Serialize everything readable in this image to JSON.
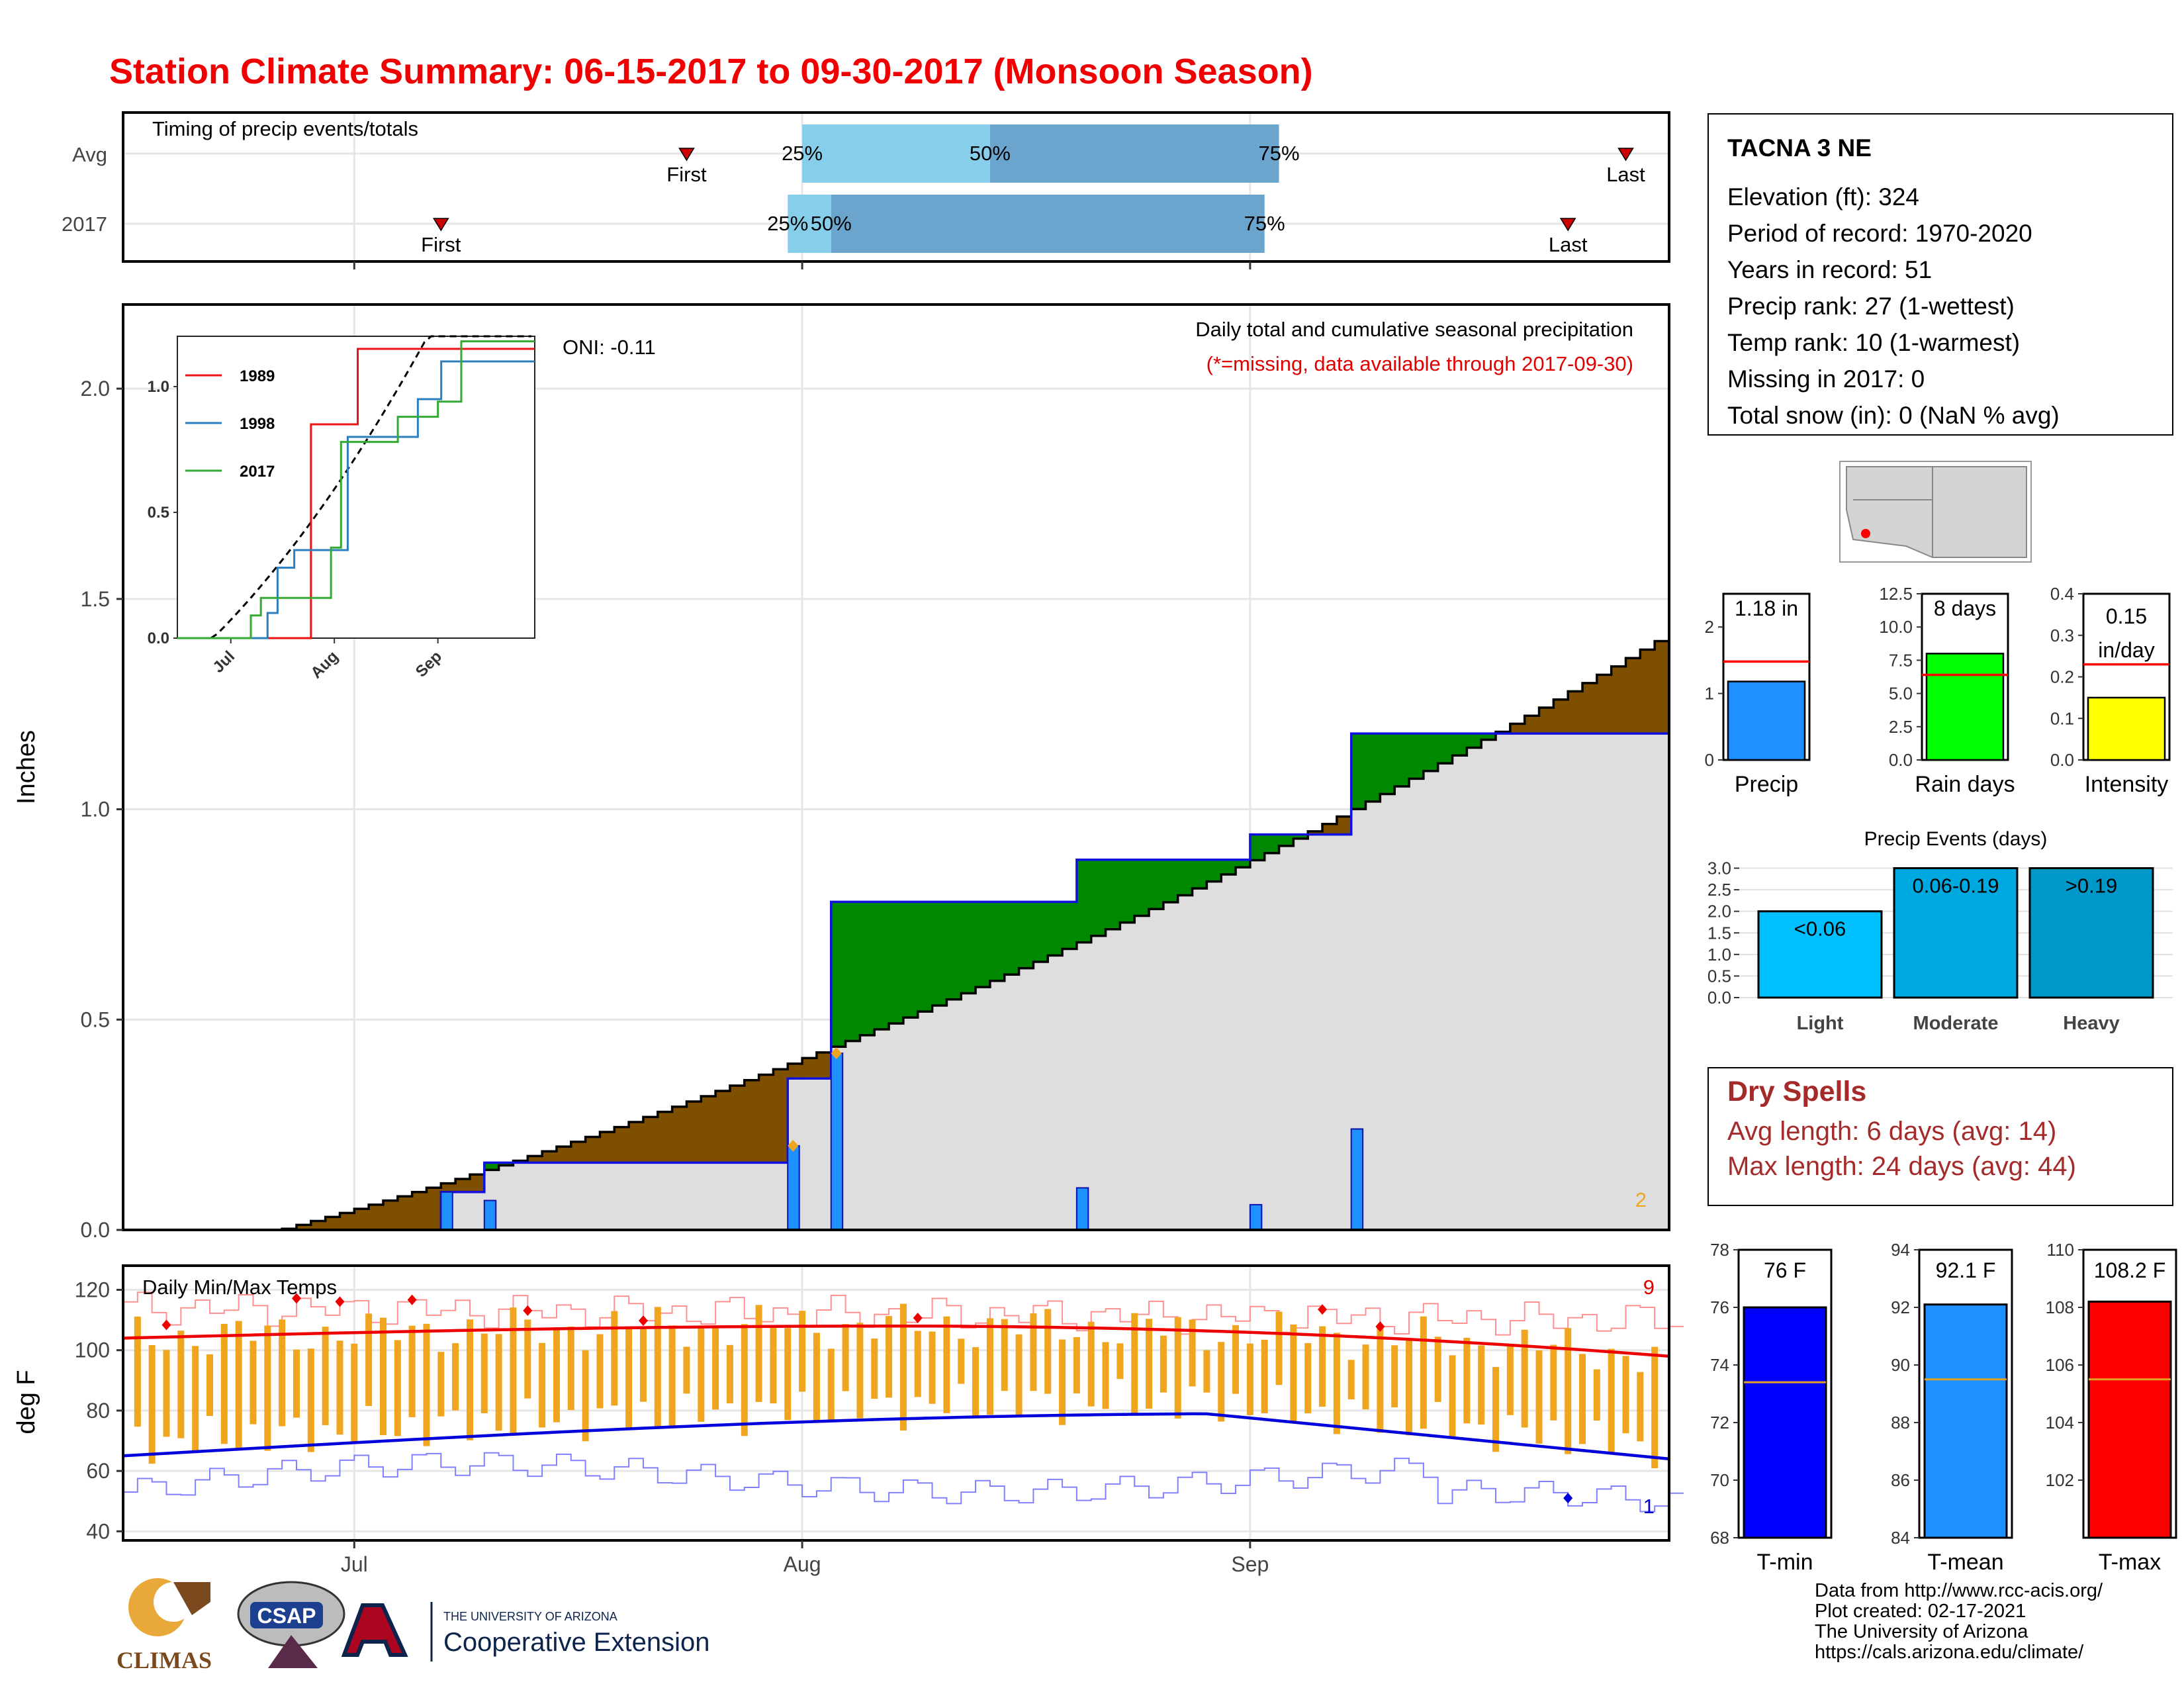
{
  "title": "Station Climate Summary: 06-15-2017 to 09-30-2017 (Monsoon Season)",
  "colors": {
    "title": "#f00000",
    "brown": "#7f4f00",
    "green": "#008800",
    "blue_line": "#1010e0",
    "bar_blue": "#1e90ff",
    "gray_fill": "#dedede",
    "q_light": "#87ceeb",
    "q_dark": "#6ba4cc",
    "orange": "#f0a51e",
    "dry_red": "#a52a2a"
  },
  "timing_panel": {
    "label": "Timing of precip events/totals",
    "rows": [
      {
        "name": "Avg",
        "first_date": "2017-07-24",
        "last_date": "2017-09-27",
        "q25": "2017-08-01",
        "q50": "2017-08-14",
        "q75": "2017-09-03",
        "first_label": "First",
        "last_label": "Last",
        "q25_label": "25%",
        "q50_label": "50%",
        "q75_label": "75%"
      },
      {
        "name": "2017",
        "first_date": "2017-07-07",
        "last_date": "2017-09-23",
        "q25": "2017-07-31",
        "q50": "2017-08-03",
        "q75": "2017-09-02",
        "first_label": "First",
        "last_label": "Last",
        "q25_label": "25%",
        "q50_label": "50%",
        "q75_label": "75%"
      }
    ]
  },
  "precip_panel": {
    "ylabel": "Inches",
    "yticks": [
      "0.0",
      "0.5",
      "1.0",
      "1.5",
      "2.0"
    ],
    "oni": "ONI: -0.11",
    "legend_title": "Daily total and cumulative seasonal precipitation",
    "missing_note": "(*=missing, data available through 2017-09-30)",
    "corner_count": "2"
  },
  "inset": {
    "yticks": [
      "0.0",
      "0.5",
      "1.0"
    ],
    "xticks": [
      "Jul",
      "Aug",
      "Sep"
    ],
    "series": [
      {
        "name": "1989",
        "color": "#ee1111"
      },
      {
        "name": "1998",
        "color": "#2b7fbf"
      },
      {
        "name": "2017",
        "color": "#33aa33"
      }
    ]
  },
  "temp_panel": {
    "ylabel": "deg F",
    "label": "Daily Min/Max Temps",
    "yticks": [
      "40",
      "60",
      "80",
      "100",
      "120"
    ],
    "count_top": "9",
    "count_bottom": "1"
  },
  "x_months": [
    "Jul",
    "Aug",
    "Sep"
  ],
  "station": {
    "name": "TACNA 3 NE",
    "lines": [
      "Elevation (ft): 324",
      "Period of record: 1970-2020",
      "Years in record: 51",
      "Precip rank: 27 (1-wettest)",
      "Temp rank: 10 (1-warmest)",
      "Missing in 2017: 0",
      "Total snow (in): 0 (NaN % avg)"
    ]
  },
  "summary_bars": [
    {
      "label": "Precip",
      "value_text": "1.18 in",
      "value": 1.18,
      "avg": 1.48,
      "ymax": 2.5,
      "ticks": [
        "0",
        "1",
        "2"
      ],
      "color": "#1e90ff"
    },
    {
      "label": "Rain days",
      "value_text": "8 days",
      "value": 8,
      "avg": 6.4,
      "ymax": 12.5,
      "ticks": [
        "0.0",
        "2.5",
        "5.0",
        "7.5",
        "10.0",
        "12.5"
      ],
      "color": "#00ff00"
    },
    {
      "label": "Intensity",
      "value_text": "0.15 in/day",
      "value": 0.15,
      "avg": 0.23,
      "ymax": 0.4,
      "ticks": [
        "0.0",
        "0.1",
        "0.2",
        "0.3",
        "0.4"
      ],
      "color": "#ffff00"
    }
  ],
  "events": {
    "title": "Precip Events (days)",
    "yticks": [
      "0.0",
      "0.5",
      "1.0",
      "1.5",
      "2.0",
      "2.5",
      "3.0"
    ],
    "bars": [
      {
        "category": "Light",
        "range": "<0.06",
        "value": 2,
        "color": "#00bfff"
      },
      {
        "category": "Moderate",
        "range": "0.06-0.19",
        "value": 3,
        "color": "#00a8e0"
      },
      {
        "category": "Heavy",
        "range": ">0.19",
        "value": 3,
        "color": "#0098c8"
      }
    ]
  },
  "dry_spells": {
    "title": "Dry Spells",
    "avg": "Avg length: 6 days (avg: 14)",
    "max": "Max length: 24 days (avg: 44)"
  },
  "temp_bars": [
    {
      "label": "T-min",
      "value_text": "76 F",
      "value": 76,
      "avg": 73.4,
      "ymin": 68,
      "ymax": 78,
      "ticks": [
        "68",
        "70",
        "72",
        "74",
        "76",
        "78"
      ],
      "color": "#0000ff"
    },
    {
      "label": "T-mean",
      "value_text": "92.1 F",
      "value": 92.1,
      "avg": 89.5,
      "ymin": 84,
      "ymax": 94,
      "ticks": [
        "84",
        "86",
        "88",
        "90",
        "92",
        "94"
      ],
      "color": "#1e90ff"
    },
    {
      "label": "T-max",
      "value_text": "108.2 F",
      "value": 108.2,
      "avg": 105.5,
      "ymin": 100,
      "ymax": 110,
      "ticks": [
        "102",
        "104",
        "106",
        "108",
        "110"
      ],
      "color": "#ff0000"
    }
  ],
  "logos": {
    "climas": "CLIMAS",
    "csap": "CSAP",
    "ua_small": "THE UNIVERSITY OF ARIZONA",
    "ua_big": "Cooperative Extension"
  },
  "credits": [
    "Data from http://www.rcc-acis.org/",
    "Plot created: 02-17-2021",
    "The University of Arizona",
    "https://cals.arizona.edu/climate/"
  ],
  "chart_data": {
    "type": "area",
    "title": "Daily total and cumulative seasonal precipitation",
    "ylabel": "Inches",
    "ylim": [
      0,
      2.2
    ],
    "xlim": [
      "2017-06-15",
      "2017-09-30"
    ],
    "daily_precip_2017": [
      {
        "date": "2017-07-07",
        "value": 0.09
      },
      {
        "date": "2017-07-10",
        "value": 0.07
      },
      {
        "date": "2017-07-31",
        "value": 0.2
      },
      {
        "date": "2017-08-03",
        "value": 0.42
      },
      {
        "date": "2017-08-20",
        "value": 0.1
      },
      {
        "date": "2017-09-01",
        "value": 0.06
      },
      {
        "date": "2017-09-08",
        "value": 0.24
      }
    ],
    "cumulative_2017_total": 1.18,
    "cumulative_avg_end": 1.42,
    "inset_series": {
      "1989": [
        [
          "2017-06-15",
          0
        ],
        [
          "2017-07-25",
          0
        ],
        [
          "2017-07-25",
          0.85
        ],
        [
          "2017-08-08",
          0.85
        ],
        [
          "2017-08-08",
          1.15
        ],
        [
          "2017-09-30",
          1.15
        ]
      ],
      "1998": [
        [
          "2017-06-15",
          0
        ],
        [
          "2017-07-12",
          0
        ],
        [
          "2017-07-12",
          0.1
        ],
        [
          "2017-07-15",
          0.1
        ],
        [
          "2017-07-15",
          0.28
        ],
        [
          "2017-07-20",
          0.28
        ],
        [
          "2017-07-20",
          0.35
        ],
        [
          "2017-08-05",
          0.35
        ],
        [
          "2017-08-05",
          0.8
        ],
        [
          "2017-08-26",
          0.8
        ],
        [
          "2017-08-26",
          0.95
        ],
        [
          "2017-09-02",
          0.95
        ],
        [
          "2017-09-02",
          1.1
        ],
        [
          "2017-09-30",
          1.1
        ]
      ],
      "2017": [
        [
          "2017-06-15",
          0
        ],
        [
          "2017-07-07",
          0
        ],
        [
          "2017-07-07",
          0.09
        ],
        [
          "2017-07-10",
          0.09
        ],
        [
          "2017-07-10",
          0.16
        ],
        [
          "2017-07-31",
          0.16
        ],
        [
          "2017-07-31",
          0.36
        ],
        [
          "2017-08-03",
          0.36
        ],
        [
          "2017-08-03",
          0.78
        ],
        [
          "2017-08-20",
          0.78
        ],
        [
          "2017-08-20",
          0.88
        ],
        [
          "2017-09-01",
          0.88
        ],
        [
          "2017-09-01",
          0.94
        ],
        [
          "2017-09-08",
          0.94
        ],
        [
          "2017-09-08",
          1.18
        ],
        [
          "2017-09-30",
          1.18
        ]
      ]
    },
    "temps": {
      "avg_max_start": 104,
      "avg_max_peak": 108,
      "avg_max_end": 98,
      "avg_min_start": 65,
      "avg_min_peak": 79,
      "avg_min_end": 64
    }
  }
}
